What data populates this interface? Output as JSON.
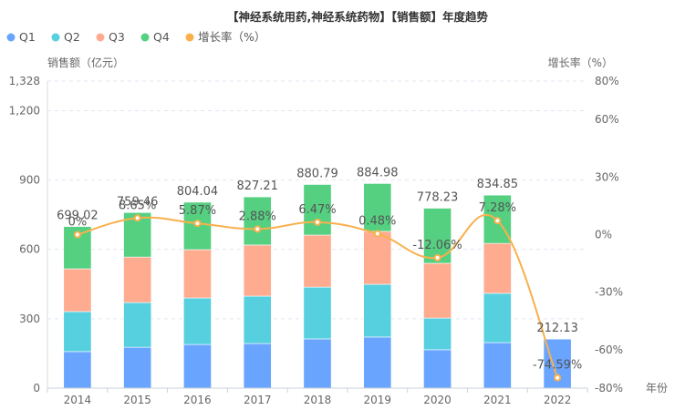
{
  "chart_data": {
    "type": "bar",
    "title": "【神经系统用药,神经系统药物】【销售额】年度趋势",
    "xlabel": "年份",
    "ylabel": "销售额（亿元）",
    "y2label": "增长率（%）",
    "categories": [
      "2014",
      "2015",
      "2016",
      "2017",
      "2018",
      "2019",
      "2020",
      "2021",
      "2022"
    ],
    "stacked": true,
    "series": [
      {
        "name": "Q1",
        "color": "#69a5ff",
        "values": [
          158,
          177,
          189,
          193,
          213,
          221,
          166,
          197,
          212.13
        ]
      },
      {
        "name": "Q2",
        "color": "#56cfdf",
        "values": [
          173,
          193,
          201,
          205,
          224,
          228,
          137,
          213,
          0
        ]
      },
      {
        "name": "Q3",
        "color": "#ffab8f",
        "values": [
          185,
          197,
          209,
          221,
          225,
          229,
          237,
          216,
          0
        ]
      },
      {
        "name": "Q4",
        "color": "#55d081",
        "values": [
          183.02,
          192.46,
          205.04,
          208.21,
          218.79,
          206.98,
          238.23,
          208.85,
          0
        ]
      }
    ],
    "totals": [
      699.02,
      759.46,
      804.04,
      827.21,
      880.79,
      884.98,
      778.23,
      834.85,
      212.13
    ],
    "total_labels": [
      "699.02",
      "759.46",
      "804.04",
      "827.21",
      "880.79",
      "884.98",
      "778.23",
      "834.85",
      "212.13"
    ],
    "line": {
      "name": "增长率（%）",
      "color": "#f9b04d",
      "values": [
        0,
        8.65,
        5.87,
        2.88,
        6.47,
        0.48,
        -12.06,
        7.28,
        -74.59
      ],
      "labels": [
        "0%",
        "8.65%",
        "5.87%",
        "2.88%",
        "6.47%",
        "0.48%",
        "-12.06%",
        "7.28%",
        "-74.59%"
      ]
    },
    "ylim": [
      0,
      1328
    ],
    "yticks": [
      0,
      300,
      600,
      900,
      1200,
      1328
    ],
    "ytick_labels": [
      "0",
      "300",
      "600",
      "900",
      "1,200",
      "1,328"
    ],
    "y2lim": [
      -80,
      80
    ],
    "y2ticks": [
      -80,
      -60,
      -30,
      0,
      30,
      60,
      80
    ],
    "y2tick_labels": [
      "-80%",
      "-60%",
      "-30%",
      "0%",
      "30%",
      "60%",
      "80%"
    ],
    "grid": true,
    "legend": {
      "position": "top-left",
      "items": [
        {
          "label": "Q1",
          "color": "#69a5ff"
        },
        {
          "label": "Q2",
          "color": "#56cfdf"
        },
        {
          "label": "Q3",
          "color": "#ffab8f"
        },
        {
          "label": "Q4",
          "color": "#55d081"
        },
        {
          "label": "增长率（%）",
          "color": "#f9b04d"
        }
      ]
    }
  }
}
